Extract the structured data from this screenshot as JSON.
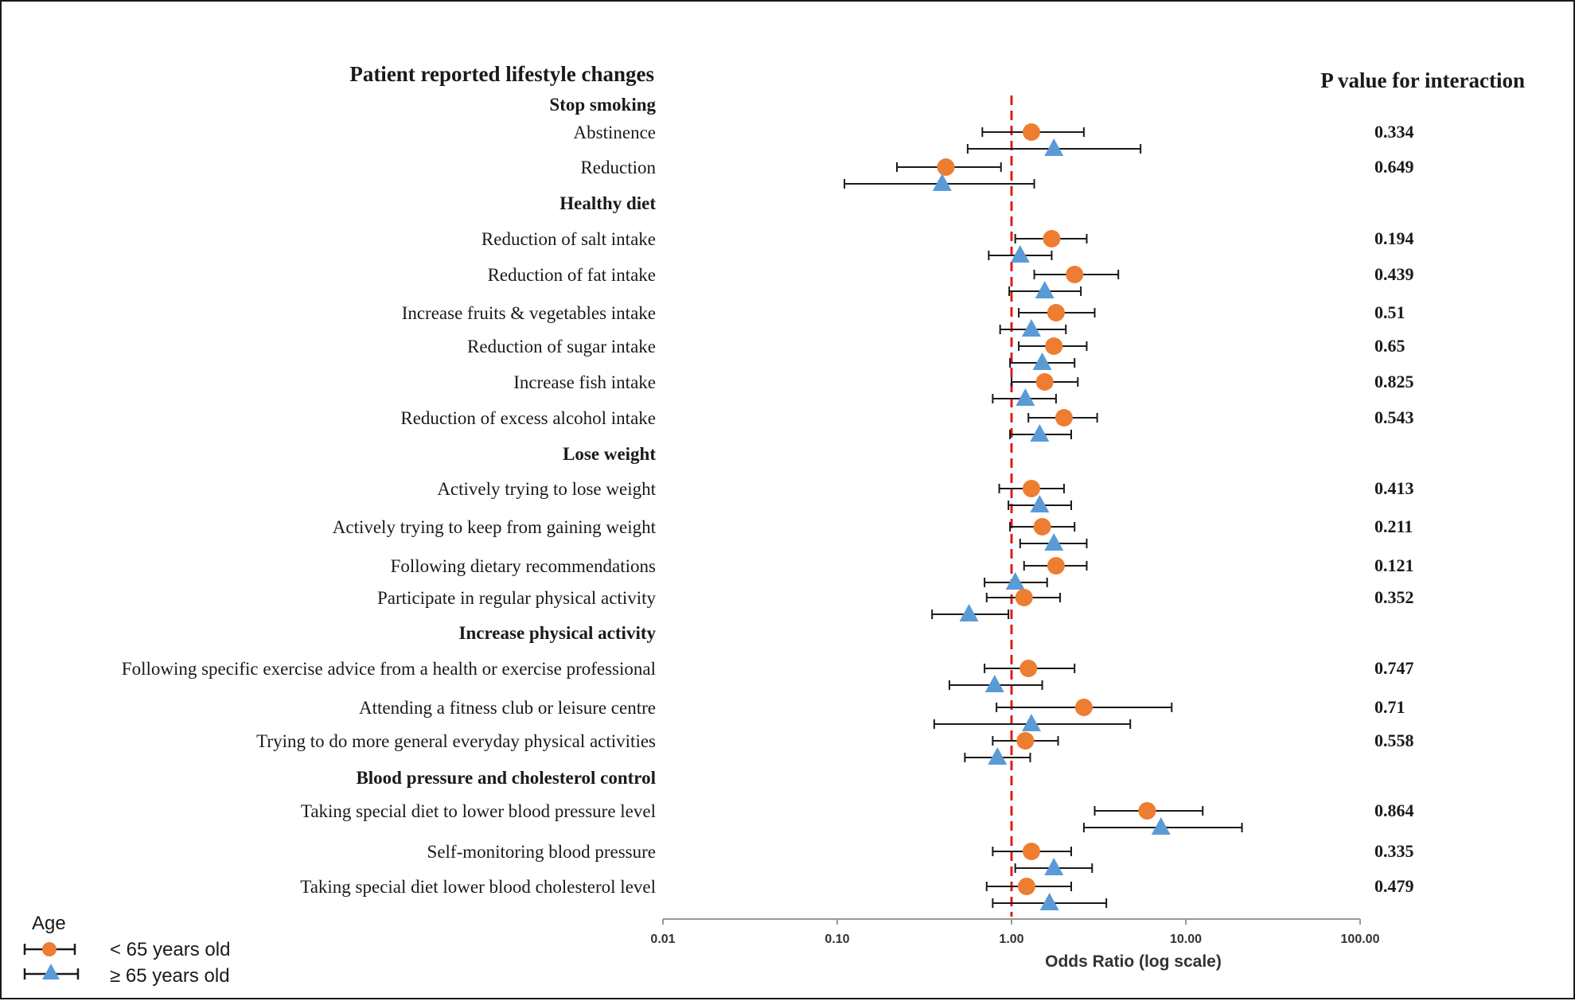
{
  "chart_data": {
    "type": "forest",
    "title": "Patient reported lifestyle changes",
    "pvalue_header": "P value for interaction",
    "xlabel": "Odds Ratio (log scale)",
    "x_scale": "log",
    "xlim": [
      0.01,
      100
    ],
    "x_ticks": [
      "0.01",
      "0.10",
      "1.00",
      "10.00",
      "100.00"
    ],
    "reference_line": 1.0,
    "reference_line_color": "#e31a1c",
    "legend": {
      "title": "Age",
      "placement": "bottom-left",
      "items": [
        {
          "label": "< 65 years old",
          "marker": "circle",
          "color": "#ed7d31"
        },
        {
          "label": "≥ 65 years old",
          "marker": "triangle",
          "color": "#5b9bd5"
        }
      ]
    },
    "sections": [
      {
        "category": "Stop smoking",
        "rows": [
          {
            "label": "Abstinence",
            "p_value": "0.334",
            "lt65": {
              "or": 1.3,
              "ci": [
                0.68,
                2.6
              ]
            },
            "ge65": {
              "or": 1.75,
              "ci": [
                0.56,
                5.5
              ]
            }
          },
          {
            "label": "Reduction",
            "p_value": "0.649",
            "lt65": {
              "or": 0.42,
              "ci": [
                0.22,
                0.87
              ]
            },
            "ge65": {
              "or": 0.4,
              "ci": [
                0.11,
                1.35
              ]
            }
          }
        ]
      },
      {
        "category": "Healthy diet",
        "rows": [
          {
            "label": "Reduction of salt intake",
            "p_value": "0.194",
            "lt65": {
              "or": 1.7,
              "ci": [
                1.05,
                2.7
              ]
            },
            "ge65": {
              "or": 1.12,
              "ci": [
                0.74,
                1.7
              ]
            }
          },
          {
            "label": "Reduction of fat intake",
            "p_value": "0.439",
            "lt65": {
              "or": 2.3,
              "ci": [
                1.35,
                4.1
              ]
            },
            "ge65": {
              "or": 1.55,
              "ci": [
                0.97,
                2.5
              ]
            }
          },
          {
            "label": "Increase fruits & vegetables intake",
            "p_value": "0.51",
            "lt65": {
              "or": 1.8,
              "ci": [
                1.1,
                3.0
              ]
            },
            "ge65": {
              "or": 1.3,
              "ci": [
                0.86,
                2.05
              ]
            }
          },
          {
            "label": "Reduction of sugar intake",
            "p_value": "0.65",
            "lt65": {
              "or": 1.75,
              "ci": [
                1.1,
                2.7
              ]
            },
            "ge65": {
              "or": 1.5,
              "ci": [
                0.98,
                2.3
              ]
            }
          },
          {
            "label": "Increase fish intake",
            "p_value": "0.825",
            "lt65": {
              "or": 1.55,
              "ci": [
                1.0,
                2.4
              ]
            },
            "ge65": {
              "or": 1.2,
              "ci": [
                0.78,
                1.8
              ]
            }
          },
          {
            "label": "Reduction of excess alcohol intake",
            "p_value": "0.543",
            "lt65": {
              "or": 2.0,
              "ci": [
                1.25,
                3.1
              ]
            },
            "ge65": {
              "or": 1.45,
              "ci": [
                0.98,
                2.2
              ]
            }
          }
        ]
      },
      {
        "category": "Lose weight",
        "rows": [
          {
            "label": "Actively trying to lose weight",
            "p_value": "0.413",
            "lt65": {
              "or": 1.3,
              "ci": [
                0.85,
                2.0
              ]
            },
            "ge65": {
              "or": 1.45,
              "ci": [
                0.96,
                2.2
              ]
            }
          },
          {
            "label": "Actively trying to keep from gaining weight",
            "p_value": "0.211",
            "lt65": {
              "or": 1.5,
              "ci": [
                0.98,
                2.3
              ]
            },
            "ge65": {
              "or": 1.75,
              "ci": [
                1.12,
                2.7
              ]
            }
          },
          {
            "label": "Following dietary recommendations",
            "p_value": "0.121",
            "lt65": {
              "or": 1.8,
              "ci": [
                1.18,
                2.7
              ]
            },
            "ge65": {
              "or": 1.05,
              "ci": [
                0.7,
                1.6
              ]
            }
          },
          {
            "label": "Participate in regular physical activity",
            "p_value": "0.352",
            "lt65": {
              "or": 1.18,
              "ci": [
                0.72,
                1.9
              ]
            },
            "ge65": {
              "or": 0.57,
              "ci": [
                0.35,
                0.96
              ]
            }
          }
        ]
      },
      {
        "category": "Increase physical activity",
        "rows": [
          {
            "label": "Following specific exercise advice from a health or exercise professional",
            "p_value": "0.747",
            "lt65": {
              "or": 1.25,
              "ci": [
                0.7,
                2.3
              ]
            },
            "ge65": {
              "or": 0.8,
              "ci": [
                0.44,
                1.5
              ]
            }
          },
          {
            "label": "Attending a fitness club or leisure centre",
            "p_value": "0.71",
            "lt65": {
              "or": 2.6,
              "ci": [
                0.82,
                8.3
              ]
            },
            "ge65": {
              "or": 1.3,
              "ci": [
                0.36,
                4.8
              ]
            }
          },
          {
            "label": "Trying to do more general everyday physical activities",
            "p_value": "0.558",
            "lt65": {
              "or": 1.2,
              "ci": [
                0.78,
                1.85
              ]
            },
            "ge65": {
              "or": 0.83,
              "ci": [
                0.54,
                1.28
              ]
            }
          }
        ]
      },
      {
        "category": "Blood pressure and cholesterol control",
        "rows": [
          {
            "label": "Taking special diet to lower blood pressure level",
            "p_value": "0.864",
            "lt65": {
              "or": 6.0,
              "ci": [
                3.0,
                12.5
              ]
            },
            "ge65": {
              "or": 7.2,
              "ci": [
                2.6,
                21.0
              ]
            }
          },
          {
            "label": "Self-monitoring blood pressure",
            "p_value": "0.335",
            "lt65": {
              "or": 1.3,
              "ci": [
                0.78,
                2.2
              ]
            },
            "ge65": {
              "or": 1.75,
              "ci": [
                1.05,
                2.9
              ]
            }
          },
          {
            "label": "Taking special diet lower blood cholesterol level",
            "p_value": "0.479",
            "lt65": {
              "or": 1.22,
              "ci": [
                0.72,
                2.2
              ]
            },
            "ge65": {
              "or": 1.65,
              "ci": [
                0.78,
                3.5
              ]
            }
          }
        ]
      }
    ]
  }
}
